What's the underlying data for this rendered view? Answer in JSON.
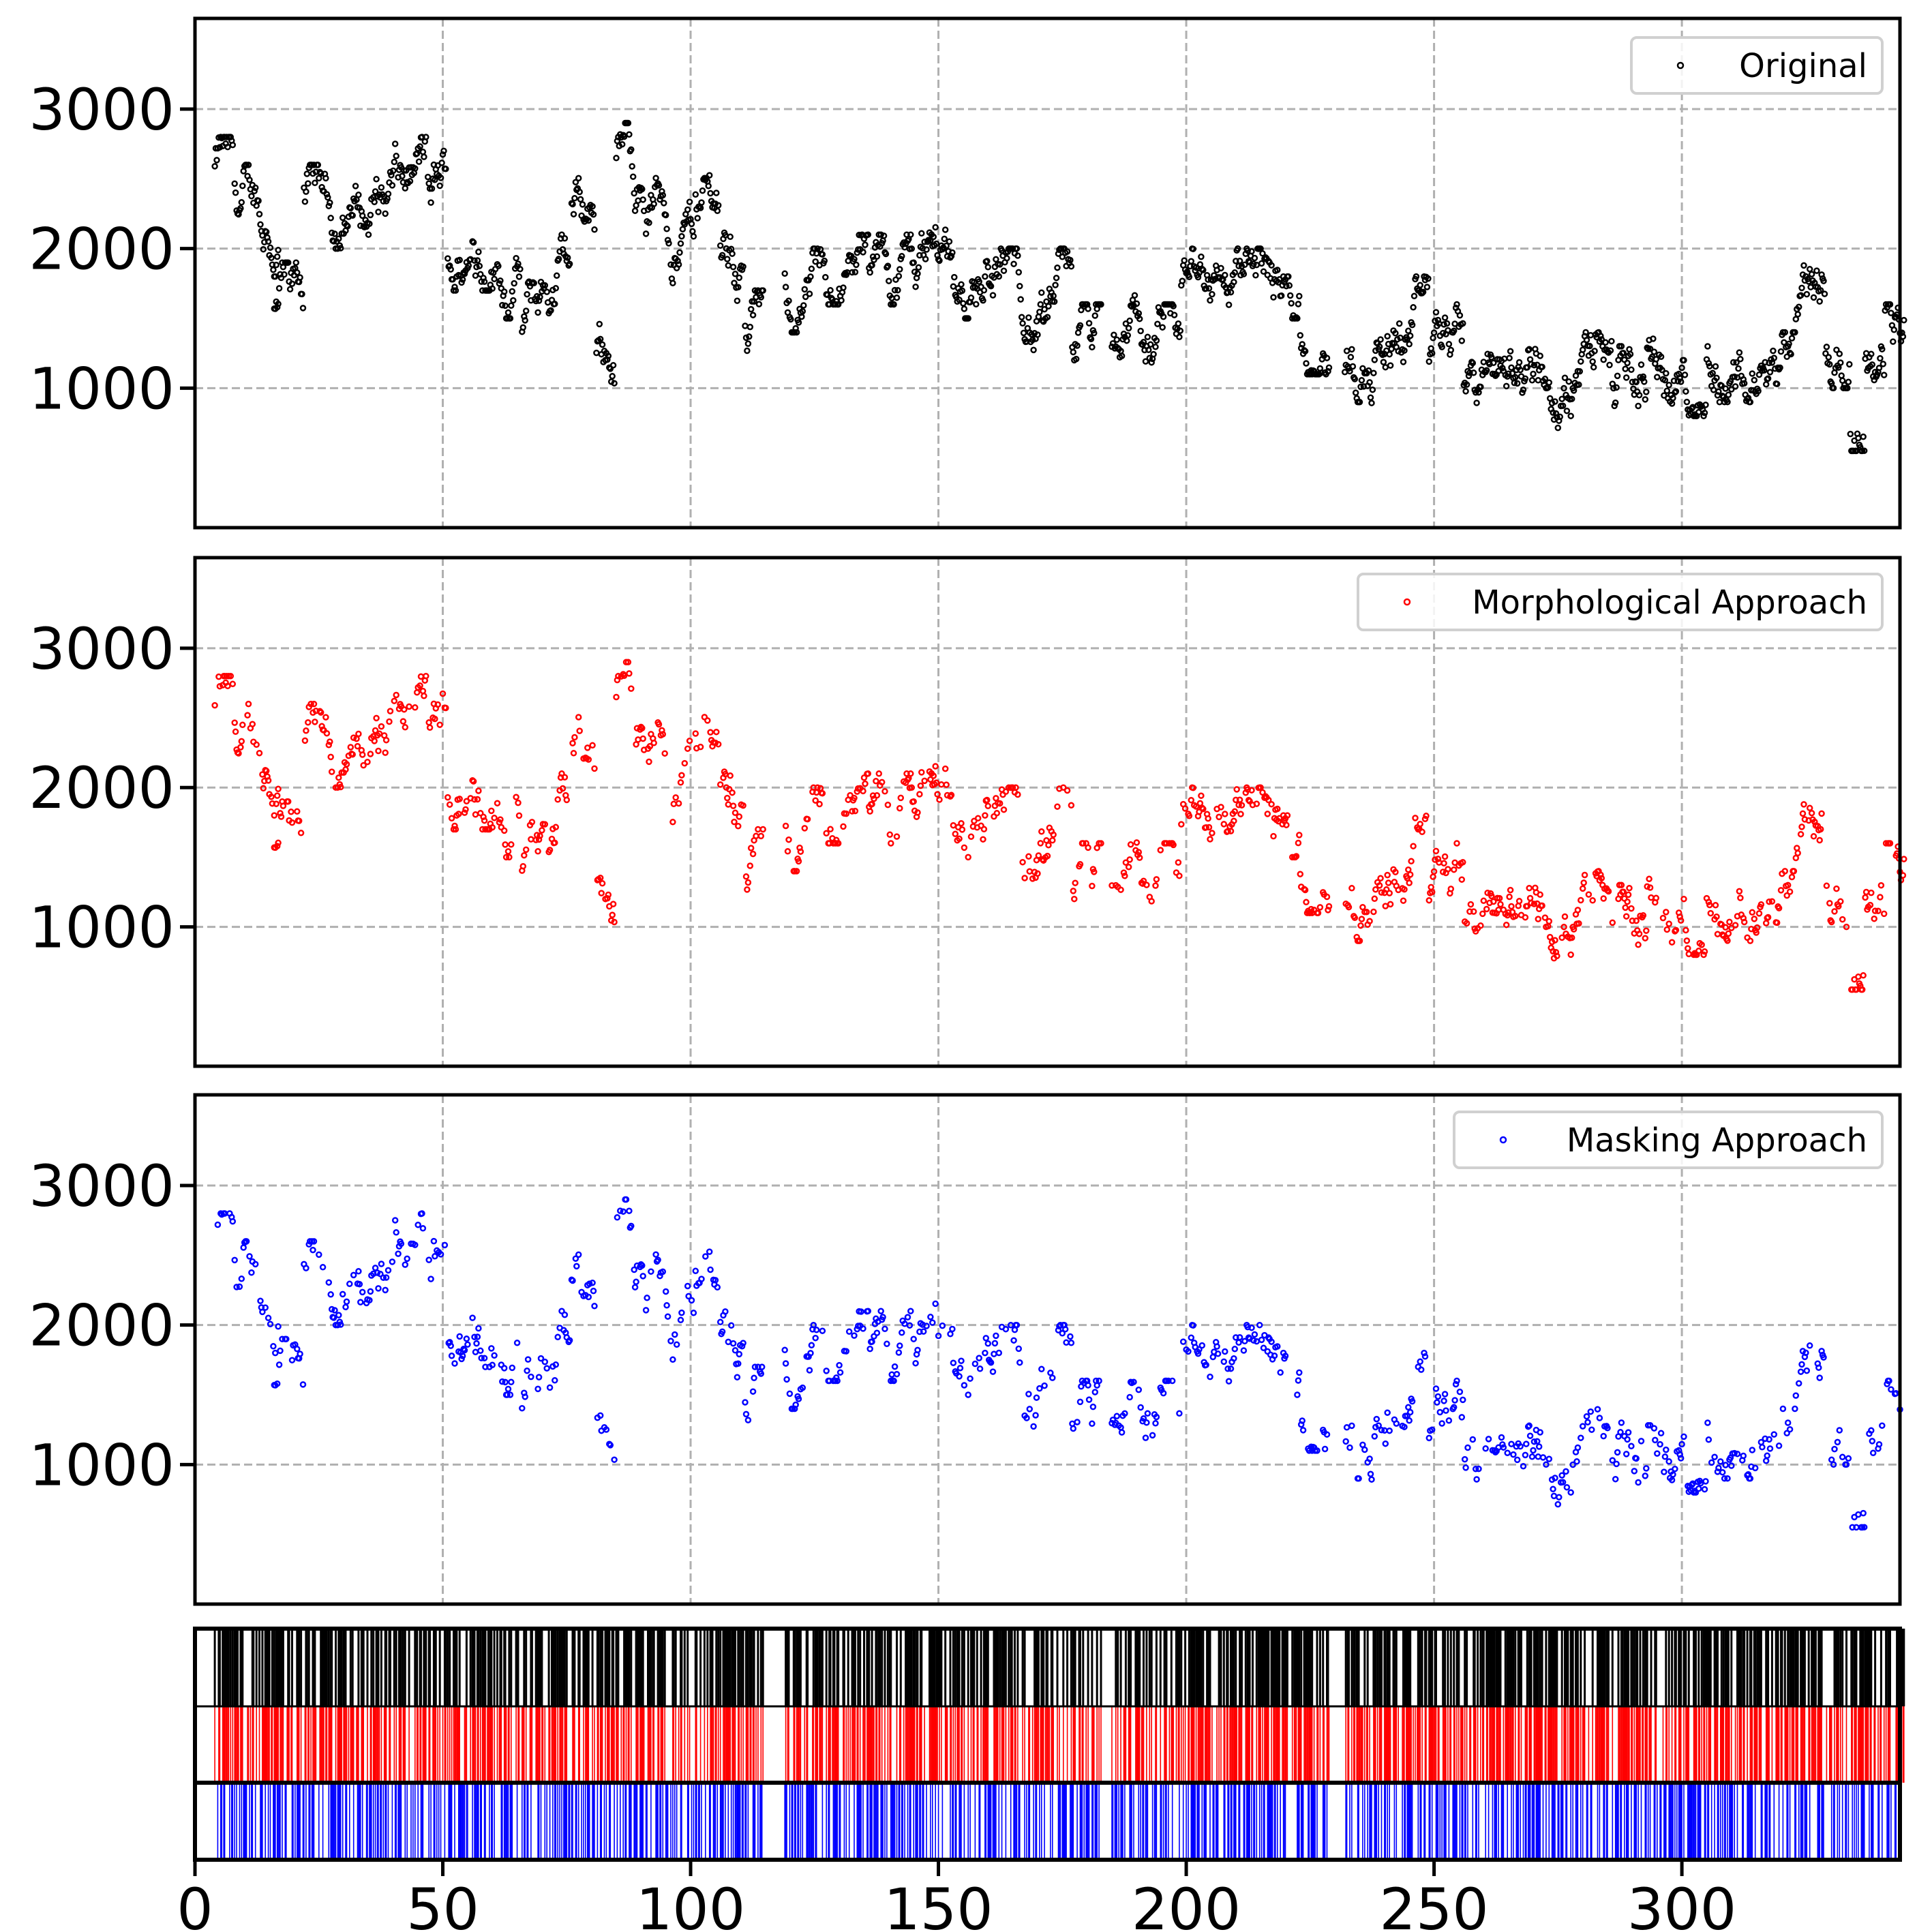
{
  "chart_data": {
    "type": "scatter",
    "xlim": [
      0,
      344
    ],
    "ylim": [
      0,
      3650
    ],
    "grid": true,
    "x_ticks": [
      "0",
      "50",
      "100",
      "150",
      "200",
      "250",
      "300"
    ],
    "y_ticks": [
      "1000",
      "2000",
      "3000"
    ],
    "legend_placement": "top-right",
    "colors": {
      "original": "#000000",
      "morphological": "#ff0000",
      "masking": "#0000ff",
      "grid": "#b0b0b0"
    },
    "series": [
      {
        "name": "Original",
        "color": "#000000",
        "keep_fraction": 1.0
      },
      {
        "name": "Morphological Approach",
        "color": "#ff0000",
        "keep_fraction": 0.6
      },
      {
        "name": "Masking Approach",
        "color": "#0000ff",
        "keep_fraction": 0.5
      }
    ],
    "segments_note_fields": [
      "x_start",
      "x_end",
      "y_min",
      "y_max"
    ],
    "segments": [
      [
        4,
        7,
        2300,
        2800
      ],
      [
        8,
        12,
        2100,
        2600
      ],
      [
        13,
        16,
        1800,
        2600
      ],
      [
        16,
        18,
        1100,
        1900
      ],
      [
        19,
        21,
        1500,
        1900
      ],
      [
        22,
        25,
        2200,
        2600
      ],
      [
        26,
        30,
        2000,
        2600
      ],
      [
        31,
        35,
        2100,
        2600
      ],
      [
        36,
        40,
        2000,
        2800
      ],
      [
        41,
        46,
        2300,
        2800
      ],
      [
        47,
        50,
        2100,
        2700
      ],
      [
        51,
        55,
        1700,
        2300
      ],
      [
        56,
        60,
        1700,
        2600
      ],
      [
        61,
        65,
        1500,
        2200
      ],
      [
        66,
        70,
        1100,
        1800
      ],
      [
        71,
        75,
        1500,
        2100
      ],
      [
        76,
        80,
        1800,
        2700
      ],
      [
        81,
        84,
        800,
        1800
      ],
      [
        85,
        90,
        2200,
        2900
      ],
      [
        91,
        95,
        1800,
        2600
      ],
      [
        96,
        100,
        1500,
        2500
      ],
      [
        101,
        105,
        2200,
        2700
      ],
      [
        106,
        110,
        1500,
        2600
      ],
      [
        111,
        114,
        1000,
        1700
      ],
      [
        119,
        125,
        1400,
        2000
      ],
      [
        126,
        135,
        1600,
        2100
      ],
      [
        136,
        145,
        1600,
        2100
      ],
      [
        146,
        152,
        1600,
        2200
      ],
      [
        153,
        160,
        1500,
        2100
      ],
      [
        161,
        170,
        1200,
        2000
      ],
      [
        171,
        176,
        1100,
        2000
      ],
      [
        177,
        182,
        1200,
        1600
      ],
      [
        185,
        190,
        1100,
        1700
      ],
      [
        191,
        198,
        1100,
        1600
      ],
      [
        199,
        204,
        1400,
        2000
      ],
      [
        205,
        210,
        1300,
        2300
      ],
      [
        211,
        218,
        1500,
        2000
      ],
      [
        219,
        222,
        1500,
        1800
      ],
      [
        223,
        228,
        1100,
        1600
      ],
      [
        232,
        236,
        900,
        1500
      ],
      [
        237,
        242,
        800,
        1500
      ],
      [
        243,
        248,
        900,
        1800
      ],
      [
        249,
        255,
        1000,
        1600
      ],
      [
        256,
        262,
        700,
        1500
      ],
      [
        263,
        268,
        900,
        1500
      ],
      [
        269,
        272,
        1000,
        1400
      ],
      [
        273,
        278,
        700,
        1200
      ],
      [
        279,
        285,
        800,
        1400
      ],
      [
        286,
        292,
        550,
        1300
      ],
      [
        293,
        297,
        800,
        1600
      ],
      [
        298,
        304,
        800,
        1200
      ],
      [
        305,
        310,
        900,
        1400
      ],
      [
        311,
        316,
        900,
        1600
      ],
      [
        317,
        322,
        900,
        1400
      ],
      [
        323,
        328,
        1000,
        1900
      ],
      [
        329,
        333,
        1000,
        1500
      ],
      [
        334,
        336,
        550,
        900
      ],
      [
        337,
        340,
        900,
        1400
      ],
      [
        341,
        344,
        1300,
        1600
      ]
    ]
  }
}
